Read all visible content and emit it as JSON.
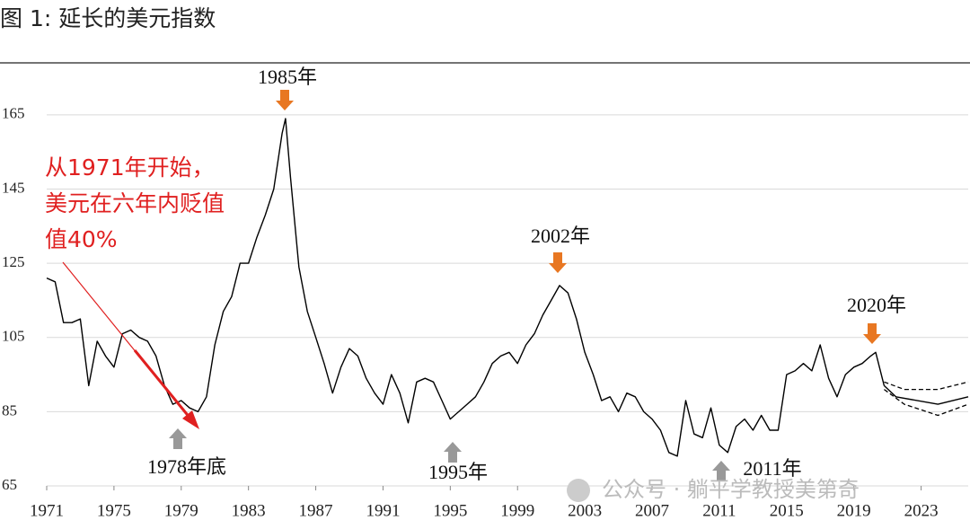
{
  "chart_data": {
    "type": "line",
    "title": "图 1:  延长的美元指数",
    "xlim": [
      1971,
      2025.8
    ],
    "xticks": [
      1971,
      1975,
      1979,
      1983,
      1987,
      1991,
      1995,
      1999,
      2003,
      2007,
      2011,
      2015,
      2019,
      2023
    ],
    "ylim": [
      65,
      179
    ],
    "yticks": [
      65,
      85,
      105,
      125,
      145,
      165
    ],
    "grid": true,
    "series": [
      {
        "color": "#000000",
        "dash": false,
        "x": [
          1971,
          1971.5,
          1972,
          1972.5,
          1973,
          1973.5,
          1974,
          1974.5,
          1975,
          1975.5,
          1976,
          1976.5,
          1977,
          1977.5,
          1978,
          1978.5,
          1979,
          1979.5,
          1980,
          1980.5,
          1981,
          1981.5,
          1982,
          1982.5,
          1983,
          1983.5,
          1984,
          1984.5,
          1985,
          1985.2,
          1985.5,
          1986,
          1986.5,
          1987,
          1987.5,
          1988,
          1988.5,
          1989,
          1989.5,
          1990,
          1990.5,
          1991,
          1991.5,
          1992,
          1992.5,
          1993,
          1993.5,
          1994,
          1994.5,
          1995,
          1995.5,
          1996,
          1996.5,
          1997,
          1997.5,
          1998,
          1998.5,
          1999,
          1999.5,
          2000,
          2000.5,
          2001,
          2001.5,
          2002,
          2002.5,
          2003,
          2003.5,
          2004,
          2004.5,
          2005,
          2005.5,
          2006,
          2006.5,
          2007,
          2007.5,
          2008,
          2008.5,
          2009,
          2009.5,
          2010,
          2010.5,
          2011,
          2011.5,
          2012,
          2012.5,
          2013,
          2013.5,
          2014,
          2014.5,
          2015,
          2015.5,
          2016,
          2016.5,
          2017,
          2017.5,
          2018,
          2018.5,
          2019,
          2019.5,
          2020,
          2020.3,
          2020.8
        ],
        "values": [
          121,
          120,
          109,
          109,
          110,
          92,
          104,
          100,
          97,
          106,
          107,
          105,
          104,
          100,
          92,
          87,
          88,
          86,
          85,
          89,
          103,
          112,
          116,
          125,
          125,
          132,
          138,
          145,
          160,
          164,
          148,
          124,
          112,
          105,
          98,
          90,
          97,
          102,
          100,
          94,
          90,
          87,
          95,
          90,
          82,
          93,
          94,
          93,
          88,
          83,
          85,
          87,
          89,
          93,
          98,
          100,
          101,
          98,
          103,
          106,
          111,
          115,
          119,
          117,
          110,
          101,
          95,
          88,
          89,
          85,
          90,
          89,
          85,
          83,
          80,
          74,
          73,
          88,
          79,
          78,
          86,
          76,
          74,
          81,
          83,
          80,
          84,
          80,
          80,
          95,
          96,
          98,
          96,
          103,
          94,
          89,
          95,
          97,
          98,
          100,
          101,
          92
        ]
      },
      {
        "color": "#000000",
        "dash": false,
        "x": [
          2020.8,
          2021.5,
          2024,
          2025.8
        ],
        "values": [
          92,
          89,
          87,
          89
        ]
      },
      {
        "color": "#000000",
        "dash": true,
        "x": [
          2020.8,
          2022,
          2024,
          2025.8
        ],
        "values": [
          93,
          91,
          91,
          93
        ]
      },
      {
        "color": "#000000",
        "dash": true,
        "x": [
          2020.8,
          2022,
          2024,
          2025.8
        ],
        "values": [
          91,
          87,
          84,
          87
        ]
      }
    ],
    "annotations": [
      "1985年",
      "2002年",
      "2020年",
      "1978年底",
      "1995年",
      "2011年"
    ],
    "note_lines": [
      "从1971年开始，",
      "美元在六年内贬值",
      "值40%"
    ],
    "watermark": "公众号 · 躺平学教授美第奇"
  }
}
